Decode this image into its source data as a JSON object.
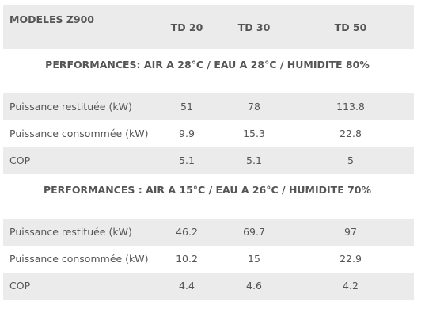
{
  "header": {
    "title": "MODELES Z900",
    "columns": [
      "TD 20",
      "TD 30",
      "TD 50"
    ]
  },
  "sections": [
    {
      "title": "PERFORMANCES: AIR A 28°C / EAU A 28°C / HUMIDITE 80%",
      "rows": [
        [
          "Puissance restituée (kW)",
          51,
          78,
          113.8
        ],
        [
          "Puissance consommée (kW)",
          9.9,
          15.3,
          22.8
        ],
        [
          "COP",
          5.1,
          5.1,
          5
        ]
      ]
    },
    {
      "title": "PERFORMANCES : AIR A 15°C / EAU A 26°C / HUMIDITE 70%",
      "rows": [
        [
          "Puissance restituée (kW)",
          46.2,
          69.7,
          97
        ],
        [
          "Puissance consommée (kW)",
          10.2,
          15,
          22.9
        ],
        [
          "COP",
          4.4,
          4.6,
          4.2
        ]
      ]
    }
  ]
}
